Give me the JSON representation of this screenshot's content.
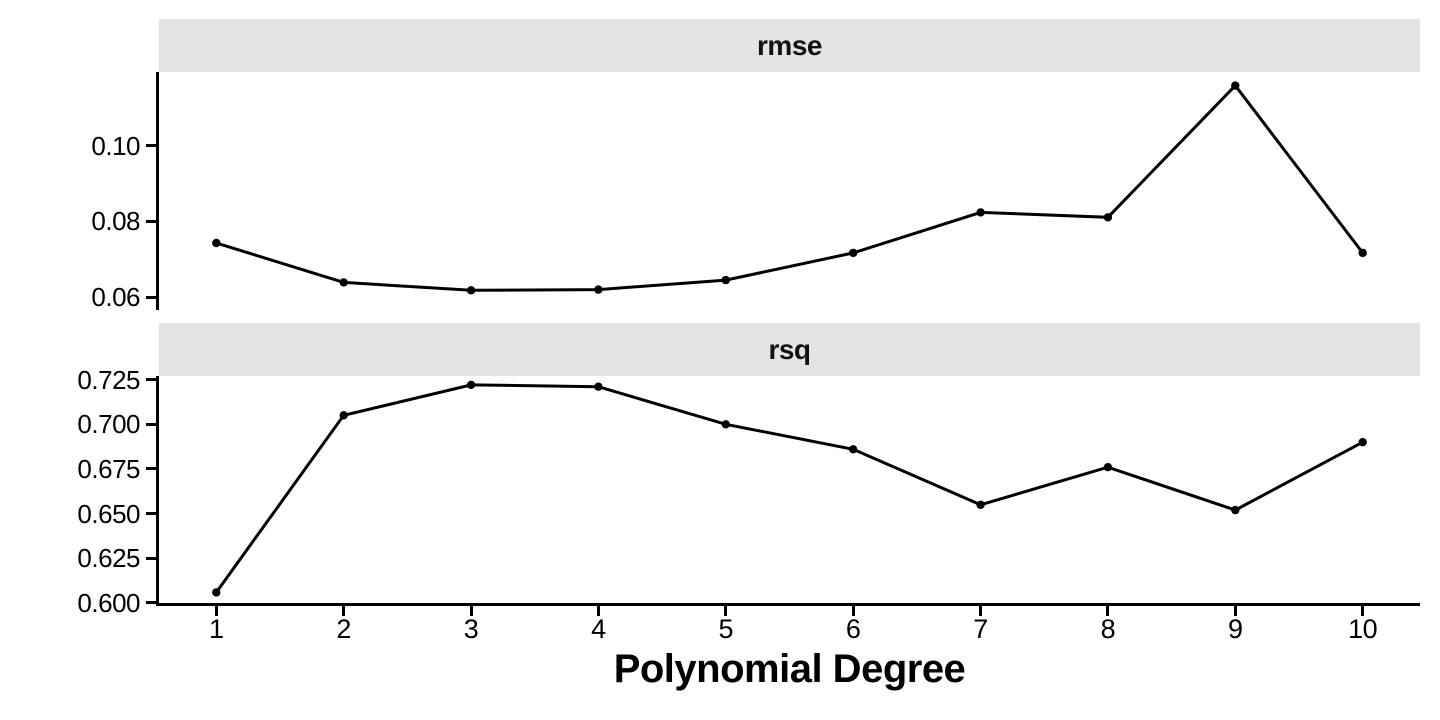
{
  "chart_data": {
    "type": "line",
    "title": "",
    "xlabel": "Polynomial Degree",
    "x": [
      1,
      2,
      3,
      4,
      5,
      6,
      7,
      8,
      9,
      10
    ],
    "x_tick_labels": [
      "1",
      "2",
      "3",
      "4",
      "5",
      "6",
      "7",
      "8",
      "9",
      "10"
    ],
    "xlim": [
      0.55,
      10.45
    ],
    "grid": "off",
    "legend": "none",
    "marker": "point",
    "facets": [
      {
        "label": "rmse",
        "metric": "rmse",
        "values": [
          0.0743,
          0.0639,
          0.0618,
          0.062,
          0.0645,
          0.0717,
          0.0824,
          0.0811,
          0.1159,
          0.0717
        ],
        "ylim": [
          0.0566,
          0.1195
        ],
        "yticks": [
          0.06,
          0.08,
          0.1
        ],
        "ytick_labels": [
          "0.06",
          "0.08",
          "0.10"
        ]
      },
      {
        "label": "rsq",
        "metric": "rsq",
        "values": [
          0.606,
          0.705,
          0.722,
          0.721,
          0.7,
          0.686,
          0.655,
          0.676,
          0.652,
          0.69
        ],
        "ylim": [
          0.5995,
          0.727
        ],
        "yticks": [
          0.6,
          0.625,
          0.65,
          0.675,
          0.7,
          0.725
        ],
        "ytick_labels": [
          "0.600",
          "0.625",
          "0.650",
          "0.675",
          "0.700",
          "0.725"
        ]
      }
    ],
    "style": {
      "background": "#FFFFFF",
      "strip_fill": "#E4E4E4",
      "strip_text_color": "#111111",
      "axis_text_color": "#000000",
      "axis_line_color": "#000000",
      "line_color": "#000000",
      "point_color": "#000000"
    }
  }
}
